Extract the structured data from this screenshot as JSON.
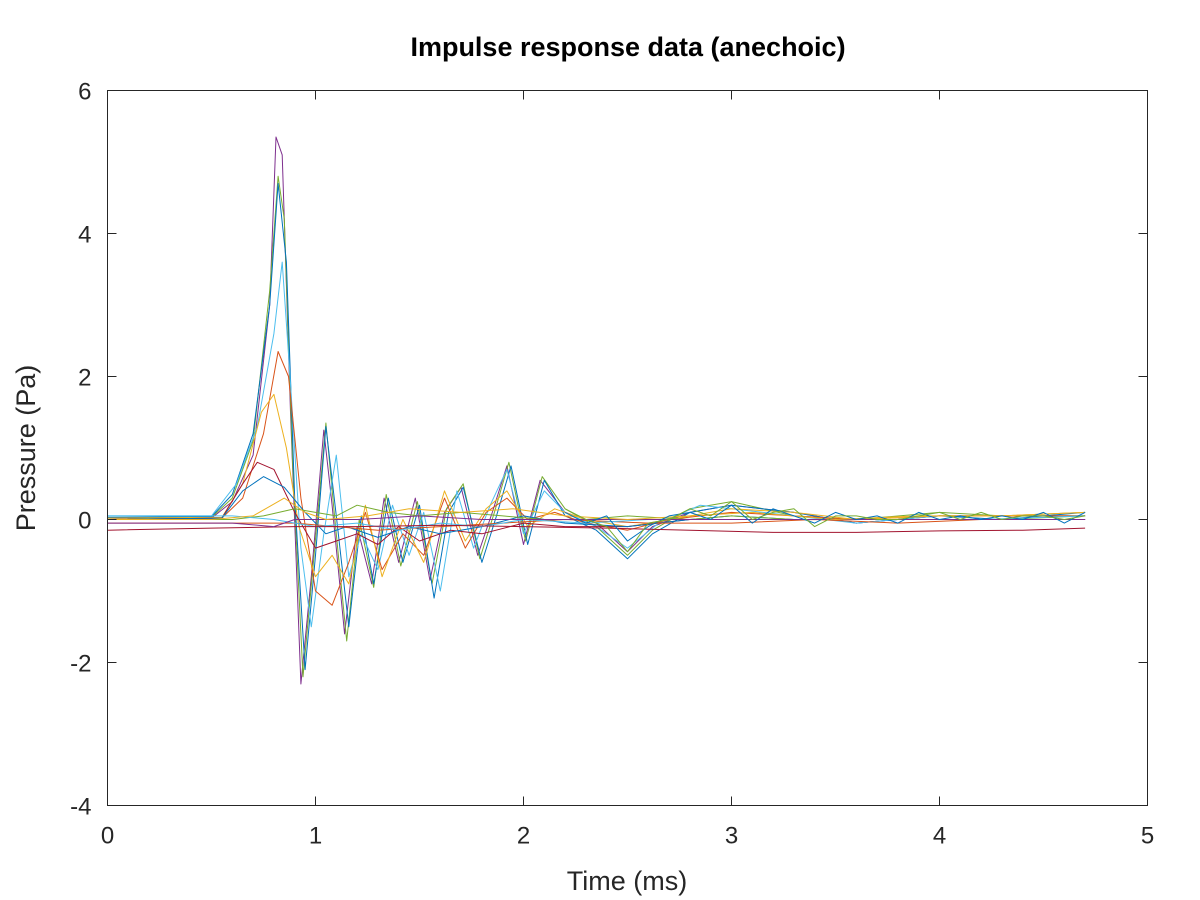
{
  "chart_data": {
    "type": "line",
    "title": "Impulse response data (anechoic)",
    "xlabel": "Time (ms)",
    "ylabel": "Pressure (Pa)",
    "xlim": [
      0,
      5
    ],
    "ylim": [
      -4,
      6
    ],
    "xticks": [
      0,
      1,
      2,
      3,
      4,
      5
    ],
    "xtick_labels": [
      "0",
      "1",
      "2",
      "3",
      "4",
      "5"
    ],
    "yticks": [
      -4,
      -2,
      0,
      2,
      4,
      6
    ],
    "ytick_labels": [
      "-4",
      "-2",
      "0",
      "2",
      "4",
      "6"
    ],
    "grid": false,
    "legend": "none",
    "series_colors": [
      "#0072bd",
      "#d95319",
      "#edb120",
      "#7e2f8e",
      "#77ac30",
      "#4dbeee",
      "#a2142f"
    ],
    "series": [
      {
        "color": "#7e2f8e",
        "x": [
          0,
          0.5,
          0.6,
          0.7,
          0.78,
          0.81,
          0.84,
          0.88,
          0.93,
          0.98,
          1.04,
          1.08,
          1.14,
          1.2,
          1.27,
          1.33,
          1.4,
          1.48,
          1.55,
          1.62,
          1.7,
          1.78,
          1.85,
          1.92,
          2.0,
          2.08,
          2.2,
          2.35,
          2.5,
          2.62,
          2.8,
          3.0,
          3.3,
          3.6,
          4.0,
          4.3,
          4.7
        ],
        "y": [
          0,
          0.02,
          0.25,
          0.9,
          3.0,
          5.35,
          5.1,
          1.5,
          -2.3,
          -0.8,
          1.25,
          0.2,
          -1.6,
          -0.1,
          -0.9,
          0.3,
          -0.6,
          0.3,
          -0.85,
          0.1,
          0.45,
          -0.5,
          0.1,
          0.75,
          -0.35,
          0.55,
          0.1,
          -0.05,
          -0.45,
          -0.1,
          0.1,
          0.2,
          0.1,
          -0.05,
          0.05,
          0.05,
          0.05
        ]
      },
      {
        "color": "#77ac30",
        "x": [
          0,
          0.5,
          0.6,
          0.7,
          0.78,
          0.82,
          0.85,
          0.89,
          0.94,
          0.99,
          1.05,
          1.09,
          1.15,
          1.21,
          1.28,
          1.34,
          1.41,
          1.49,
          1.56,
          1.63,
          1.71,
          1.79,
          1.86,
          1.93,
          2.01,
          2.09,
          2.2,
          2.35,
          2.5,
          2.62,
          2.8,
          3.0,
          3.3,
          3.6,
          4.0,
          4.3,
          4.7
        ],
        "y": [
          0.02,
          0.03,
          0.3,
          1.1,
          3.2,
          4.8,
          4.2,
          0.8,
          -2.2,
          -0.6,
          1.35,
          0.1,
          -1.7,
          0.0,
          -0.95,
          0.35,
          -0.65,
          0.25,
          -0.9,
          0.15,
          0.5,
          -0.55,
          0.1,
          0.8,
          -0.3,
          0.6,
          0.15,
          -0.1,
          -0.5,
          -0.15,
          0.15,
          0.25,
          0.05,
          0.0,
          0.1,
          0.05,
          0.05
        ]
      },
      {
        "color": "#0072bd",
        "x": [
          0,
          0.5,
          0.6,
          0.7,
          0.78,
          0.82,
          0.86,
          0.9,
          0.95,
          1.0,
          1.05,
          1.1,
          1.16,
          1.22,
          1.28,
          1.35,
          1.42,
          1.5,
          1.57,
          1.64,
          1.71,
          1.8,
          1.87,
          1.94,
          2.02,
          2.1,
          2.2,
          2.35,
          2.5,
          2.62,
          2.8,
          3.0,
          3.3,
          3.6,
          4.0,
          4.3,
          4.7
        ],
        "y": [
          0.03,
          0.04,
          0.35,
          1.2,
          3.0,
          4.7,
          3.6,
          0.3,
          -2.1,
          -0.5,
          1.3,
          0.05,
          -1.5,
          0.05,
          -0.9,
          0.3,
          -0.6,
          0.2,
          -1.1,
          0.1,
          0.45,
          -0.6,
          0.05,
          0.75,
          -0.35,
          0.55,
          0.05,
          -0.15,
          -0.55,
          -0.2,
          0.1,
          0.2,
          0.1,
          -0.05,
          0.05,
          0.0,
          0.1
        ]
      },
      {
        "color": "#4dbeee",
        "x": [
          0,
          0.5,
          0.62,
          0.72,
          0.8,
          0.84,
          0.88,
          0.93,
          0.98,
          1.04,
          1.1,
          1.16,
          1.22,
          1.3,
          1.37,
          1.45,
          1.52,
          1.6,
          1.68,
          1.76,
          1.84,
          1.92,
          2.0,
          2.1,
          2.2,
          2.35,
          2.5,
          2.65,
          2.85,
          3.0,
          3.3,
          3.6,
          4.0,
          4.3,
          4.7
        ],
        "y": [
          0.05,
          0.05,
          0.5,
          1.3,
          2.6,
          3.6,
          1.9,
          -0.4,
          -1.5,
          -0.2,
          0.9,
          -0.8,
          -0.2,
          -0.7,
          0.2,
          -0.5,
          0.1,
          -1.0,
          0.4,
          -0.4,
          0.2,
          0.7,
          -0.2,
          0.4,
          0.1,
          -0.1,
          -0.4,
          -0.05,
          0.2,
          0.15,
          0.05,
          -0.05,
          0.05,
          0.05,
          0.1
        ]
      },
      {
        "color": "#d95319",
        "x": [
          0,
          0.55,
          0.65,
          0.75,
          0.82,
          0.87,
          0.93,
          1.0,
          1.08,
          1.16,
          1.24,
          1.32,
          1.42,
          1.52,
          1.62,
          1.72,
          1.82,
          1.92,
          2.02,
          2.15,
          2.3,
          2.5,
          2.7,
          3.0,
          3.3,
          3.6,
          4.0,
          4.3,
          4.7
        ],
        "y": [
          0.0,
          0.02,
          0.3,
          1.2,
          2.35,
          2.0,
          0.3,
          -1.0,
          -1.2,
          -0.6,
          0.1,
          -0.7,
          -0.2,
          -0.5,
          0.3,
          -0.4,
          0.1,
          0.3,
          0.0,
          0.1,
          -0.05,
          -0.15,
          0.0,
          0.1,
          0.05,
          0.0,
          0.05,
          0.05,
          0.05
        ]
      },
      {
        "color": "#edb120",
        "x": [
          0,
          0.55,
          0.65,
          0.74,
          0.8,
          0.86,
          0.92,
          1.0,
          1.08,
          1.16,
          1.24,
          1.32,
          1.42,
          1.52,
          1.62,
          1.72,
          1.82,
          1.92,
          2.02,
          2.15,
          2.3,
          2.5,
          2.7,
          3.0,
          3.3,
          3.6,
          4.0,
          4.3,
          4.7
        ],
        "y": [
          0.02,
          0.03,
          0.5,
          1.5,
          1.75,
          1.0,
          -0.1,
          -0.8,
          -0.5,
          -0.9,
          0.2,
          -0.8,
          0.0,
          -0.6,
          0.4,
          -0.3,
          0.15,
          0.4,
          -0.1,
          0.15,
          0.0,
          -0.1,
          0.0,
          0.15,
          0.1,
          0.0,
          0.05,
          0.05,
          0.1
        ]
      },
      {
        "color": "#a2142f",
        "x": [
          0,
          0.55,
          0.65,
          0.72,
          0.8,
          0.9,
          1.0,
          1.1,
          1.2,
          1.3,
          1.4,
          1.5,
          1.65,
          1.8,
          2.0,
          2.2,
          2.5,
          2.8,
          3.0,
          3.3,
          3.6,
          4.0,
          4.3,
          4.7
        ],
        "y": [
          0.0,
          0.02,
          0.5,
          0.8,
          0.7,
          0.1,
          -0.4,
          -0.3,
          -0.2,
          -0.35,
          -0.1,
          -0.3,
          -0.15,
          -0.2,
          -0.05,
          -0.1,
          -0.1,
          0.0,
          0.0,
          0.0,
          0.0,
          0.0,
          0.0,
          0.0
        ]
      },
      {
        "color": "#0072bd",
        "x": [
          0,
          0.55,
          0.65,
          0.75,
          0.85,
          0.95,
          1.05,
          1.15,
          1.3,
          1.45,
          1.6,
          1.8,
          2.0,
          2.2,
          2.5,
          2.8,
          3.0,
          3.3,
          3.6,
          4.0,
          4.3,
          4.7
        ],
        "y": [
          0.0,
          0.02,
          0.4,
          0.6,
          0.45,
          0.1,
          -0.2,
          -0.1,
          -0.25,
          -0.1,
          -0.2,
          -0.1,
          0.05,
          -0.05,
          -0.1,
          0.0,
          0.05,
          0.0,
          0.0,
          0.0,
          0.0,
          0.0
        ]
      },
      {
        "color": "#77ac30",
        "x": [
          0,
          0.6,
          0.75,
          0.9,
          1.0,
          1.1,
          1.2,
          1.35,
          1.5,
          1.7,
          1.9,
          2.1,
          2.3,
          2.5,
          2.8,
          3.0,
          3.3,
          3.6,
          4.0,
          4.3,
          4.7
        ],
        "y": [
          0.0,
          0.0,
          0.05,
          0.15,
          0.1,
          0.05,
          0.2,
          0.1,
          0.05,
          0.1,
          0.05,
          0.0,
          0.0,
          0.05,
          0.0,
          0.05,
          0.0,
          0.0,
          0.0,
          0.0,
          0.05
        ]
      },
      {
        "color": "#d95319",
        "x": [
          0,
          0.7,
          0.9,
          1.1,
          1.3,
          1.6,
          1.9,
          2.2,
          2.6,
          3.0,
          3.4,
          3.8,
          4.2,
          4.7
        ],
        "y": [
          -0.05,
          -0.05,
          -0.05,
          -0.1,
          -0.15,
          -0.1,
          -0.05,
          0.0,
          -0.05,
          -0.05,
          0.0,
          -0.05,
          0.0,
          0.0
        ]
      },
      {
        "color": "#4dbeee",
        "x": [
          0,
          0.6,
          0.8,
          1.0,
          1.2,
          1.4,
          1.6,
          1.8,
          2.0,
          2.3,
          2.6,
          3.0,
          3.4,
          3.8,
          4.2,
          4.7
        ],
        "y": [
          0.05,
          0.05,
          0.0,
          -0.1,
          -0.05,
          -0.15,
          -0.05,
          -0.1,
          0.0,
          -0.05,
          0.0,
          0.0,
          0.0,
          0.0,
          0.0,
          0.05
        ]
      },
      {
        "color": "#a2142f",
        "x": [
          0,
          0.5,
          0.9,
          1.2,
          1.6,
          2.0,
          2.4,
          2.8,
          3.2,
          3.6,
          4.0,
          4.4,
          4.7
        ],
        "y": [
          -0.15,
          -0.12,
          -0.1,
          -0.1,
          -0.08,
          -0.1,
          -0.12,
          -0.15,
          -0.18,
          -0.18,
          -0.16,
          -0.15,
          -0.12
        ]
      },
      {
        "color": "#7e2f8e",
        "x": [
          0,
          0.6,
          0.8,
          0.9,
          1.0,
          1.2,
          1.5,
          1.8,
          2.1,
          2.5,
          2.9,
          3.3,
          3.7,
          4.1,
          4.7
        ],
        "y": [
          -0.05,
          -0.05,
          -0.1,
          0.0,
          0.0,
          0.0,
          0.05,
          0.0,
          0.0,
          0.0,
          0.0,
          0.0,
          0.0,
          0.0,
          0.0
        ]
      },
      {
        "color": "#edb120",
        "x": [
          0,
          0.5,
          0.7,
          0.85,
          0.95,
          1.05,
          1.25,
          1.45,
          1.7,
          1.95,
          2.2,
          2.5,
          2.8,
          3.1,
          3.5,
          3.9,
          4.3,
          4.7
        ],
        "y": [
          0.0,
          0.0,
          0.05,
          0.3,
          0.1,
          0.0,
          0.05,
          0.15,
          0.1,
          0.15,
          0.05,
          0.0,
          0.05,
          0.1,
          0.0,
          0.05,
          0.05,
          0.1
        ]
      },
      {
        "color": "#0072bd",
        "x": [
          2.2,
          2.3,
          2.4,
          2.5,
          2.6,
          2.7,
          2.8,
          2.9,
          3.0,
          3.1,
          3.2,
          3.3,
          3.4,
          3.5,
          3.6,
          3.7,
          3.8,
          3.9,
          4.0,
          4.1,
          4.2,
          4.3,
          4.4,
          4.5,
          4.6,
          4.7
        ],
        "y": [
          0.1,
          -0.05,
          0.05,
          -0.3,
          -0.1,
          0.05,
          0.1,
          0.0,
          0.2,
          -0.05,
          0.15,
          0.05,
          -0.05,
          0.1,
          0.0,
          0.05,
          -0.05,
          0.1,
          0.0,
          0.05,
          0.0,
          0.05,
          0.0,
          0.1,
          -0.05,
          0.1
        ]
      },
      {
        "color": "#77ac30",
        "x": [
          2.2,
          2.3,
          2.4,
          2.5,
          2.6,
          2.7,
          2.8,
          2.9,
          3.0,
          3.1,
          3.2,
          3.3,
          3.4,
          3.5,
          3.6,
          3.7,
          3.8,
          3.9,
          4.0,
          4.1,
          4.2,
          4.3,
          4.4,
          4.5,
          4.6,
          4.7
        ],
        "y": [
          0.15,
          0.0,
          -0.1,
          -0.45,
          -0.05,
          0.0,
          0.15,
          0.05,
          0.25,
          0.0,
          0.1,
          0.15,
          -0.1,
          0.05,
          0.05,
          0.0,
          0.0,
          0.05,
          0.1,
          0.0,
          0.1,
          0.0,
          0.05,
          0.05,
          0.0,
          0.05
        ]
      }
    ]
  }
}
